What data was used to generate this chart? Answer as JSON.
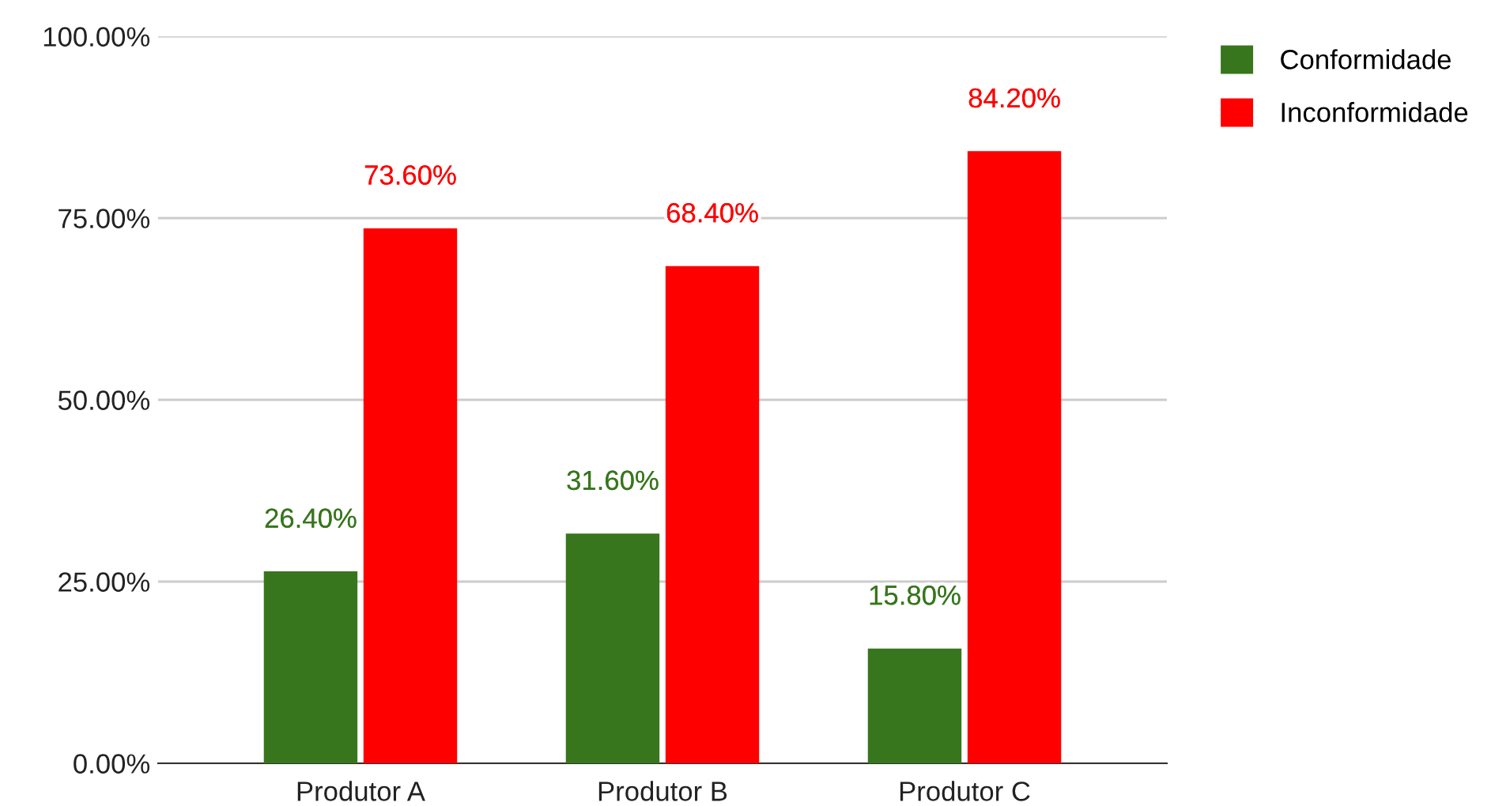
{
  "chart_data": {
    "type": "bar",
    "categories": [
      "Produtor A",
      "Produtor B",
      "Produtor C"
    ],
    "series": [
      {
        "name": "Conformidade",
        "color": "#38761d",
        "values": [
          26.4,
          31.6,
          15.8
        ],
        "value_labels": [
          "26.40%",
          "31.60%",
          "15.80%"
        ]
      },
      {
        "name": "Inconformidade",
        "color": "#ff0000",
        "values": [
          73.6,
          68.4,
          84.2
        ],
        "value_labels": [
          "73.60%",
          "68.40%",
          "84.20%"
        ]
      }
    ],
    "ylim": [
      0,
      100
    ],
    "yticks": [
      {
        "value": 0,
        "label": "0.00%"
      },
      {
        "value": 25,
        "label": "25.00%"
      },
      {
        "value": 50,
        "label": "50.00%"
      },
      {
        "value": 75,
        "label": "75.00%"
      },
      {
        "value": 100,
        "label": "100.00%"
      }
    ],
    "grid": "y",
    "legend": "top right"
  }
}
